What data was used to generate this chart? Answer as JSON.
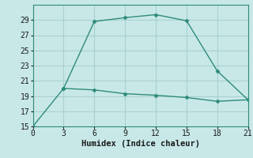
{
  "xlabel": "Humidex (Indice chaleur)",
  "line1_x": [
    0,
    3,
    6,
    9,
    12,
    15,
    18,
    21
  ],
  "line1_y": [
    15,
    20.0,
    28.8,
    29.3,
    29.7,
    28.9,
    22.3,
    18.5
  ],
  "line2_x": [
    3,
    6,
    9,
    12,
    15,
    18,
    21
  ],
  "line2_y": [
    20.0,
    19.8,
    19.3,
    19.1,
    18.8,
    18.3,
    18.5
  ],
  "line_color": "#2e8b7a",
  "bg_color": "#c8e8e8",
  "plot_bg": "#c8e8e8",
  "grid_color": "#a8d0d0",
  "xlim": [
    0,
    21
  ],
  "ylim": [
    15,
    31
  ],
  "xticks": [
    0,
    3,
    6,
    9,
    12,
    15,
    18,
    21
  ],
  "yticks": [
    15,
    17,
    19,
    21,
    23,
    25,
    27,
    29
  ],
  "marker": "D",
  "markersize": 2.5,
  "linewidth": 1.0,
  "tick_fontsize": 7,
  "xlabel_fontsize": 7.5
}
